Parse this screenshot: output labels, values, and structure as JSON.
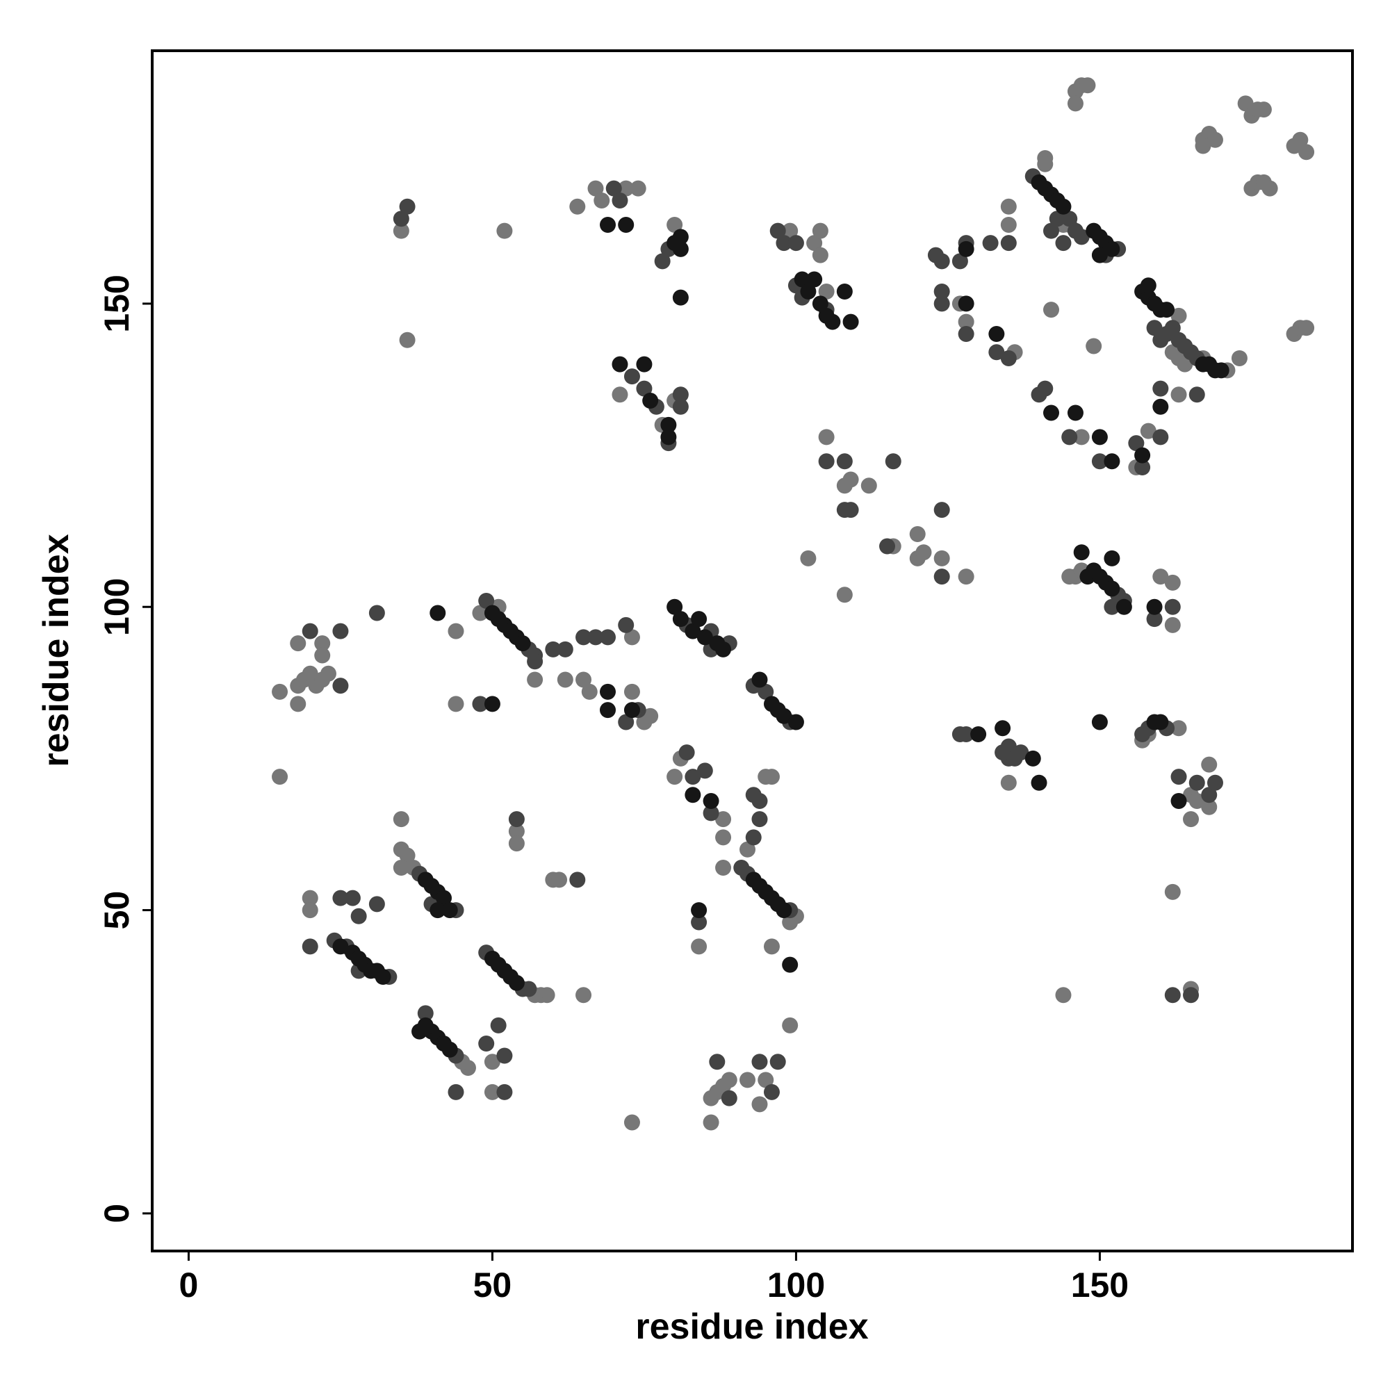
{
  "chart_data": {
    "type": "scatter",
    "x_label": "residue index",
    "y_label": "residue index",
    "xlim": [
      -6,
      191.6
    ],
    "ylim": [
      -6.2,
      191.7
    ],
    "xticks": [
      0,
      50,
      100,
      150
    ],
    "yticks": [
      0,
      50,
      100,
      150
    ],
    "grid": false,
    "series": [
      {
        "color": "#777777",
        "x": [
          35,
          35,
          36,
          35,
          37,
          20,
          20,
          15,
          15,
          18,
          18,
          19,
          20,
          21,
          22,
          23,
          22,
          22,
          18,
          44,
          44,
          48,
          51,
          57,
          62,
          65,
          66,
          73,
          75,
          76,
          73,
          50,
          50,
          46,
          45,
          54,
          54,
          60,
          61,
          58,
          59,
          57,
          65,
          84,
          96,
          99,
          100,
          99,
          88,
          88,
          88,
          95,
          96,
          92,
          80,
          81,
          86,
          87,
          88,
          89,
          86,
          92,
          95,
          94,
          73,
          35,
          36,
          52,
          64,
          67,
          68,
          72,
          74,
          80,
          71,
          78,
          80,
          99,
          103,
          104,
          104,
          105,
          105,
          108,
          109,
          112,
          108,
          102,
          116,
          120,
          120,
          121,
          124,
          128,
          128,
          127,
          135,
          135,
          136,
          141,
          144,
          145,
          149,
          142,
          147,
          158,
          156,
          163,
          164,
          167,
          162,
          163,
          163,
          171,
          173,
          146,
          145,
          147,
          160,
          162,
          162,
          135,
          157,
          158,
          163,
          165,
          165,
          168,
          168,
          166,
          144,
          165,
          162,
          146,
          147,
          146,
          148,
          167,
          168,
          169,
          167,
          174,
          175,
          176,
          177,
          175,
          176,
          177,
          178,
          182,
          183,
          184,
          182,
          183,
          184,
          141
        ],
        "values": [
          65,
          60,
          59,
          57,
          57,
          52,
          50,
          72,
          86,
          84,
          87,
          88,
          89,
          87,
          88,
          89,
          94,
          92,
          94,
          96,
          84,
          99,
          100,
          88,
          88,
          88,
          86,
          86,
          81,
          82,
          95,
          25,
          20,
          24,
          25,
          63,
          61,
          55,
          55,
          36,
          36,
          36,
          36,
          44,
          44,
          31,
          49,
          48,
          65,
          62,
          57,
          72,
          72,
          60,
          72,
          75,
          19,
          20,
          21,
          22,
          15,
          22,
          22,
          18,
          15,
          162,
          144,
          162,
          166,
          169,
          167,
          169,
          169,
          163,
          135,
          130,
          134,
          162,
          160,
          162,
          158,
          152,
          128,
          120,
          121,
          120,
          102,
          108,
          110,
          112,
          108,
          109,
          108,
          105,
          147,
          150,
          163,
          166,
          142,
          174,
          163,
          163,
          143,
          149,
          128,
          129,
          123,
          135,
          140,
          141,
          142,
          141,
          148,
          139,
          141,
          105,
          105,
          106,
          105,
          104,
          97,
          71,
          78,
          79,
          80,
          65,
          69,
          74,
          67,
          68,
          36,
          37,
          53,
          185,
          186,
          183,
          186,
          177,
          178,
          177,
          176,
          183,
          181,
          182,
          182,
          169,
          170,
          170,
          169,
          176,
          177,
          175,
          145,
          146,
          146,
          173
        ]
      },
      {
        "color": "#444444",
        "x": [
          24,
          26,
          28,
          33,
          38,
          44,
          40,
          49,
          55,
          56,
          44,
          39,
          44,
          49,
          51,
          52,
          52,
          87,
          89,
          94,
          96,
          97,
          91,
          92,
          99,
          84,
          85,
          86,
          94,
          93,
          94,
          93,
          82,
          83,
          54,
          64,
          20,
          20,
          25,
          27,
          28,
          31,
          31,
          25,
          25,
          48,
          49,
          56,
          57,
          57,
          60,
          62,
          65,
          67,
          69,
          72,
          74,
          72,
          82,
          86,
          89,
          86,
          93,
          95,
          99,
          70,
          71,
          78,
          79,
          73,
          75,
          77,
          79,
          81,
          81,
          97,
          98,
          100,
          100,
          101,
          105,
          108,
          105,
          116,
          108,
          109,
          124,
          124,
          115,
          123,
          124,
          127,
          128,
          124,
          124,
          128,
          132,
          135,
          133,
          135,
          139,
          143,
          144,
          145,
          146,
          142,
          147,
          153,
          151,
          140,
          141,
          145,
          150,
          162,
          163,
          164,
          165,
          166,
          160,
          159,
          161,
          156,
          157,
          160,
          160,
          166,
          153,
          154,
          152,
          159,
          162,
          127,
          128,
          135,
          135,
          136,
          137,
          134,
          158,
          157,
          161,
          163,
          166,
          168,
          169,
          165,
          162,
          35,
          36
        ],
        "values": [
          45,
          44,
          40,
          39,
          56,
          50,
          51,
          43,
          37,
          37,
          26,
          33,
          20,
          28,
          31,
          26,
          20,
          25,
          19,
          25,
          20,
          25,
          57,
          56,
          50,
          48,
          73,
          66,
          68,
          69,
          65,
          62,
          76,
          72,
          65,
          55,
          96,
          44,
          52,
          52,
          49,
          51,
          99,
          96,
          87,
          84,
          101,
          93,
          92,
          91,
          93,
          93,
          95,
          95,
          95,
          97,
          83,
          81,
          97,
          96,
          94,
          93,
          87,
          86,
          81,
          169,
          167,
          157,
          159,
          138,
          136,
          133,
          127,
          135,
          133,
          162,
          160,
          160,
          153,
          151,
          149,
          124,
          124,
          124,
          116,
          116,
          116,
          105,
          110,
          158,
          157,
          157,
          160,
          152,
          150,
          145,
          160,
          160,
          142,
          141,
          171,
          164,
          160,
          164,
          162,
          162,
          161,
          159,
          158,
          135,
          136,
          128,
          124,
          146,
          144,
          143,
          142,
          141,
          144,
          146,
          145,
          127,
          123,
          128,
          136,
          135,
          102,
          101,
          100,
          98,
          100,
          79,
          79,
          77,
          75,
          75,
          76,
          76,
          80,
          79,
          80,
          72,
          71,
          69,
          71,
          36,
          36,
          164,
          166
        ]
      },
      {
        "color": "#161616",
        "x": [
          25,
          27,
          28,
          29,
          30,
          31,
          32,
          39,
          40,
          41,
          42,
          43,
          41,
          50,
          51,
          52,
          53,
          54,
          38,
          39,
          40,
          41,
          42,
          43,
          93,
          94,
          95,
          96,
          97,
          98,
          99,
          84,
          83,
          86,
          50,
          51,
          52,
          53,
          54,
          55,
          41,
          50,
          69,
          69,
          73,
          80,
          81,
          83,
          84,
          85,
          87,
          88,
          94,
          96,
          97,
          98,
          100,
          81,
          80,
          81,
          81,
          79,
          79,
          71,
          75,
          76,
          101,
          102,
          103,
          104,
          105,
          106,
          108,
          109,
          128,
          128,
          133,
          140,
          141,
          142,
          143,
          144,
          149,
          150,
          151,
          152,
          150,
          142,
          146,
          150,
          152,
          157,
          158,
          159,
          160,
          161,
          158,
          167,
          168,
          169,
          170,
          160,
          157,
          147,
          148,
          149,
          150,
          151,
          152,
          152,
          154,
          159,
          130,
          134,
          139,
          140,
          150,
          159,
          160,
          163,
          69,
          72
        ],
        "values": [
          44,
          43,
          42,
          41,
          40,
          40,
          39,
          55,
          54,
          53,
          52,
          50,
          50,
          42,
          41,
          40,
          39,
          38,
          30,
          31,
          30,
          29,
          28,
          27,
          55,
          54,
          53,
          52,
          51,
          50,
          41,
          50,
          69,
          68,
          99,
          98,
          97,
          96,
          95,
          94,
          99,
          84,
          86,
          83,
          83,
          100,
          98,
          96,
          98,
          95,
          94,
          93,
          88,
          84,
          83,
          82,
          81,
          159,
          160,
          161,
          151,
          128,
          130,
          140,
          140,
          134,
          154,
          152,
          154,
          150,
          148,
          147,
          152,
          147,
          150,
          159,
          145,
          170,
          169,
          168,
          167,
          166,
          162,
          161,
          160,
          159,
          158,
          132,
          132,
          128,
          124,
          152,
          151,
          150,
          149,
          149,
          153,
          140,
          140,
          139,
          139,
          133,
          125,
          109,
          105,
          106,
          105,
          104,
          103,
          108,
          100,
          100,
          79,
          80,
          75,
          71,
          81,
          81,
          81,
          68,
          163,
          163
        ]
      }
    ]
  }
}
